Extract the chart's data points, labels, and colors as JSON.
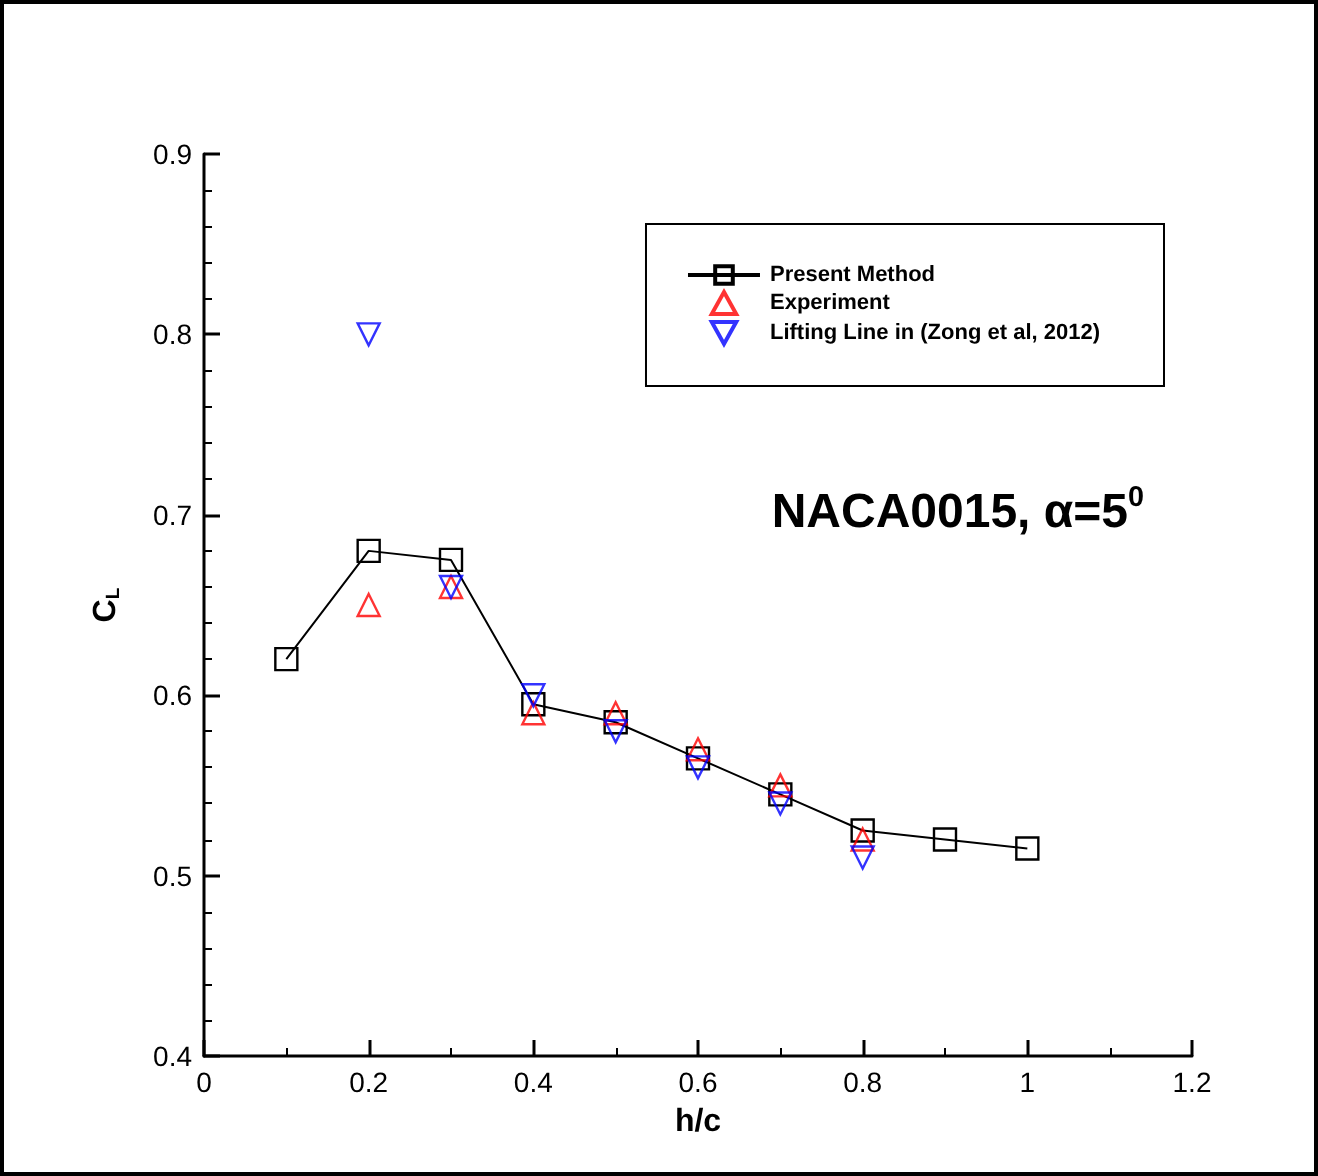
{
  "chart_data": {
    "type": "line",
    "xlabel": "h/c",
    "ylabel": "C$_{L}$",
    "annotations": [
      "NACA0015, α=5$^{0}$"
    ],
    "x": [
      0.1,
      0.2,
      0.3,
      0.4,
      0.5,
      0.6,
      0.7,
      0.8,
      0.9,
      1.0
    ],
    "series": [
      {
        "name": "Present Method",
        "marker": "square",
        "color": "#000000",
        "values": [
          0.62,
          0.68,
          0.675,
          0.595,
          0.585,
          0.565,
          0.545,
          0.525,
          0.52,
          0.515
        ]
      },
      {
        "name": "Experiment",
        "type": "scatter",
        "marker": "triangle",
        "color": "#ff0000",
        "values": [
          null,
          0.65,
          0.66,
          0.59,
          0.59,
          0.57,
          0.55,
          0.52,
          null,
          null
        ]
      },
      {
        "name": "Lifting Line in (Zong et al, 2012)",
        "type": "scatter",
        "marker": "triangle_down",
        "color": "#0000ff",
        "values": [
          null,
          0.8,
          0.66,
          0.6,
          0.58,
          0.56,
          0.54,
          0.51,
          null,
          null
        ]
      }
    ],
    "xlim": [
      0,
      1.2
    ],
    "xticks": [
      0,
      0.2,
      0.4,
      0.6,
      0.8,
      1,
      1.2
    ],
    "ylim": [
      0.4,
      0.9
    ],
    "yticks": [
      0.4,
      0.5,
      0.6,
      0.7,
      0.8,
      0.9
    ],
    "grid": false,
    "legend": "top right"
  }
}
